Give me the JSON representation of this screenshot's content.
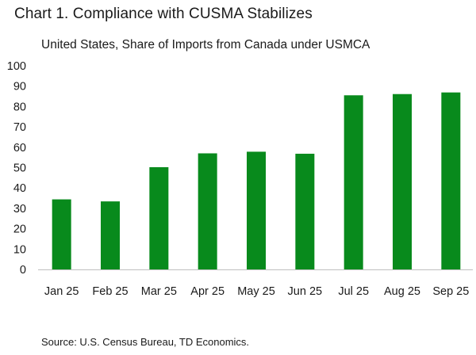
{
  "title": "Chart 1. Compliance with CUSMA Stabilizes",
  "subtitle": "United States, Share of Imports from Canada under USMCA",
  "source": "Source: U.S. Census Bureau, TD Economics.",
  "chart_data": {
    "type": "bar",
    "categories": [
      "Jan 25",
      "Feb 25",
      "Mar 25",
      "Apr 25",
      "May 25",
      "Jun 25",
      "Jul 25",
      "Aug 25",
      "Sep 25"
    ],
    "series": [
      {
        "values": [
          34.4,
          33.4,
          50.2,
          57.0,
          57.8,
          56.8,
          85.5,
          86.1,
          86.9
        ],
        "color": "#088a1c"
      }
    ],
    "xlabel": "",
    "ylabel": "",
    "ylim": [
      0,
      100
    ],
    "yticks": [
      0,
      10,
      20,
      30,
      40,
      50,
      60,
      70,
      80,
      90,
      100
    ],
    "grid": false,
    "legend": "none"
  }
}
